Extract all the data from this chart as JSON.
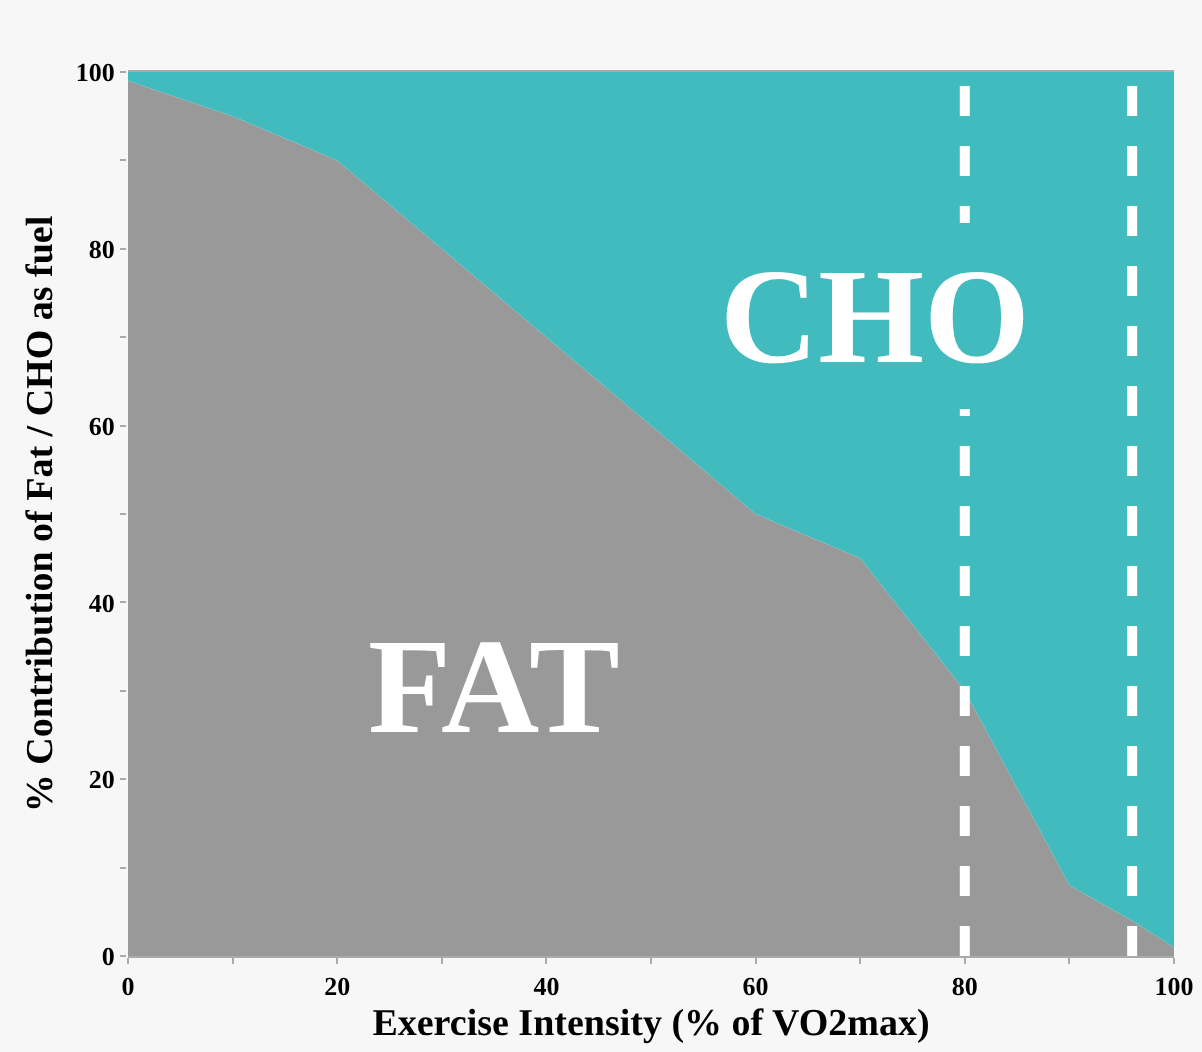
{
  "chart_data": {
    "type": "area",
    "stacked": true,
    "xlabel": "Exercise Intensity (% of VO2max)",
    "ylabel": "% Contribution of Fat / CHO as fuel",
    "x": [
      0,
      10,
      20,
      30,
      40,
      50,
      60,
      70,
      80,
      90,
      96,
      100
    ],
    "series": [
      {
        "name": "FAT",
        "color": "#999999",
        "values": [
          99,
          95,
          90,
          80,
          70,
          60,
          50,
          45,
          30,
          8,
          4,
          1
        ]
      },
      {
        "name": "CHO",
        "color": "#42bbbf",
        "values": [
          1,
          5,
          10,
          20,
          30,
          40,
          50,
          55,
          70,
          92,
          96,
          99
        ]
      }
    ],
    "xlim": [
      0,
      100
    ],
    "ylim": [
      0,
      100
    ],
    "xticks": [
      0,
      {
        "value": 10,
        "label": null
      },
      20,
      {
        "value": 30,
        "label": null
      },
      40,
      {
        "value": 50,
        "label": null
      },
      60,
      {
        "value": 70,
        "label": null
      },
      80,
      {
        "value": 90,
        "label": null
      },
      100
    ],
    "yticks": [
      0,
      {
        "value": 10,
        "label": null
      },
      20,
      {
        "value": 30,
        "label": null
      },
      40,
      {
        "value": 50,
        "label": null
      },
      60,
      {
        "value": 70,
        "label": null
      },
      80,
      {
        "value": 90,
        "label": null
      },
      100
    ],
    "ref_lines": [
      {
        "axis": "x",
        "value": 80,
        "color": "#ffffff",
        "line_style": "dashed"
      },
      {
        "axis": "x",
        "value": 96,
        "color": "#ffffff",
        "line_style": "dashed"
      }
    ],
    "legend": false
  }
}
